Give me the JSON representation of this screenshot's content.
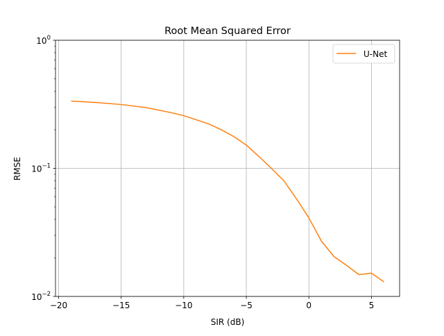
{
  "chart_data": {
    "type": "line",
    "title": "Root Mean Squared Error",
    "xlabel": "SIR (dB)",
    "ylabel": "RMSE",
    "xlim": [
      -20.25,
      7.25
    ],
    "ylim": [
      0.01,
      1
    ],
    "yscale": "log",
    "grid": true,
    "legend_position": "top-right",
    "x_ticks": [
      -20,
      -15,
      -10,
      -5,
      0,
      5
    ],
    "x_tick_labels": [
      "−20",
      "−15",
      "−10",
      "−5",
      "0",
      "5"
    ],
    "y_ticks": [
      0.01,
      0.1,
      1
    ],
    "y_tick_labels": [
      {
        "base": "10",
        "exp": "−2"
      },
      {
        "base": "10",
        "exp": "−1"
      },
      {
        "base": "10",
        "exp": "0"
      }
    ],
    "series": [
      {
        "name": "U-Net",
        "color": "#ff7f0e",
        "x": [
          -19,
          -17,
          -15,
          -13,
          -11,
          -10,
          -8,
          -7,
          -6,
          -5,
          -4,
          -3,
          -2,
          -1,
          0,
          1,
          2,
          3,
          4,
          5,
          6
        ],
        "y": [
          0.335,
          0.327,
          0.315,
          0.298,
          0.272,
          0.258,
          0.222,
          0.2,
          0.177,
          0.152,
          0.124,
          0.1,
          0.08,
          0.058,
          0.041,
          0.027,
          0.0205,
          0.0175,
          0.0148,
          0.0152,
          0.013
        ]
      }
    ]
  }
}
